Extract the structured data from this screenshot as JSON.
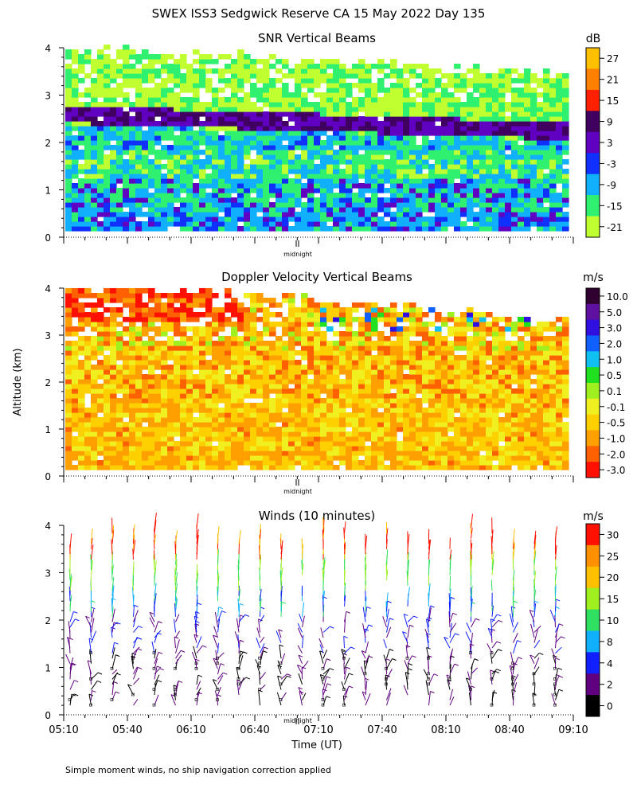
{
  "figure": {
    "title": "SWEX ISS3 Sedgwick Reserve CA  15 May 2022 Day 135",
    "ylabel": "Altitude (km)",
    "xlabel": "Time (UT)",
    "footnote": "Simple moment winds, no ship navigation correction applied",
    "midnight_label": "midnight"
  },
  "chart_data": [
    {
      "type": "heatmap",
      "title": "SNR Vertical Beams",
      "colorbar_unit": "dB",
      "ylim": [
        0,
        4
      ],
      "yticks": [
        "0",
        "1",
        "2",
        "3",
        "4"
      ],
      "colorbar_ticks": [
        "27",
        "21",
        "15",
        "9",
        "3",
        "-3",
        "-9",
        "-15",
        "-21"
      ],
      "colors": [
        "#ffc000",
        "#ff8000",
        "#ff2000",
        "#400060",
        "#6000c0",
        "#1030ff",
        "#10b0ff",
        "#30f070",
        "#c0ff30"
      ]
    },
    {
      "type": "heatmap",
      "title": "Doppler Velocity Vertical Beams",
      "colorbar_unit": "m/s",
      "ylim": [
        0,
        4
      ],
      "yticks": [
        "0",
        "1",
        "2",
        "3",
        "4"
      ],
      "colorbar_ticks": [
        "10.0",
        "5.0",
        "3.0",
        "2.0",
        "1.0",
        "0.5",
        "0.1",
        "-0.1",
        "-0.5",
        "-1.0",
        "-2.0",
        "-3.0"
      ],
      "colors": [
        "#300030",
        "#6010a0",
        "#3010e0",
        "#1060ff",
        "#10c0f0",
        "#20e020",
        "#a0f020",
        "#f0f020",
        "#ffd000",
        "#ffa000",
        "#ff6000",
        "#ff1000"
      ]
    },
    {
      "type": "scatter",
      "title": "Winds (10 minutes)",
      "colorbar_unit": "m/s",
      "ylim": [
        0,
        4
      ],
      "yticks": [
        "0",
        "1",
        "2",
        "3",
        "4"
      ],
      "x": [
        "05:10",
        "05:40",
        "06:10",
        "06:40",
        "07:10",
        "07:40",
        "08:10",
        "08:40",
        "09:10"
      ],
      "colorbar_ticks": [
        "30",
        "25",
        "20",
        "15",
        "10",
        "8",
        "4",
        "2",
        "0"
      ],
      "colors": [
        "#ff1000",
        "#ff9000",
        "#ffc000",
        "#a0f020",
        "#30e060",
        "#10b0ff",
        "#1020ff",
        "#600080",
        "#000000"
      ]
    }
  ]
}
